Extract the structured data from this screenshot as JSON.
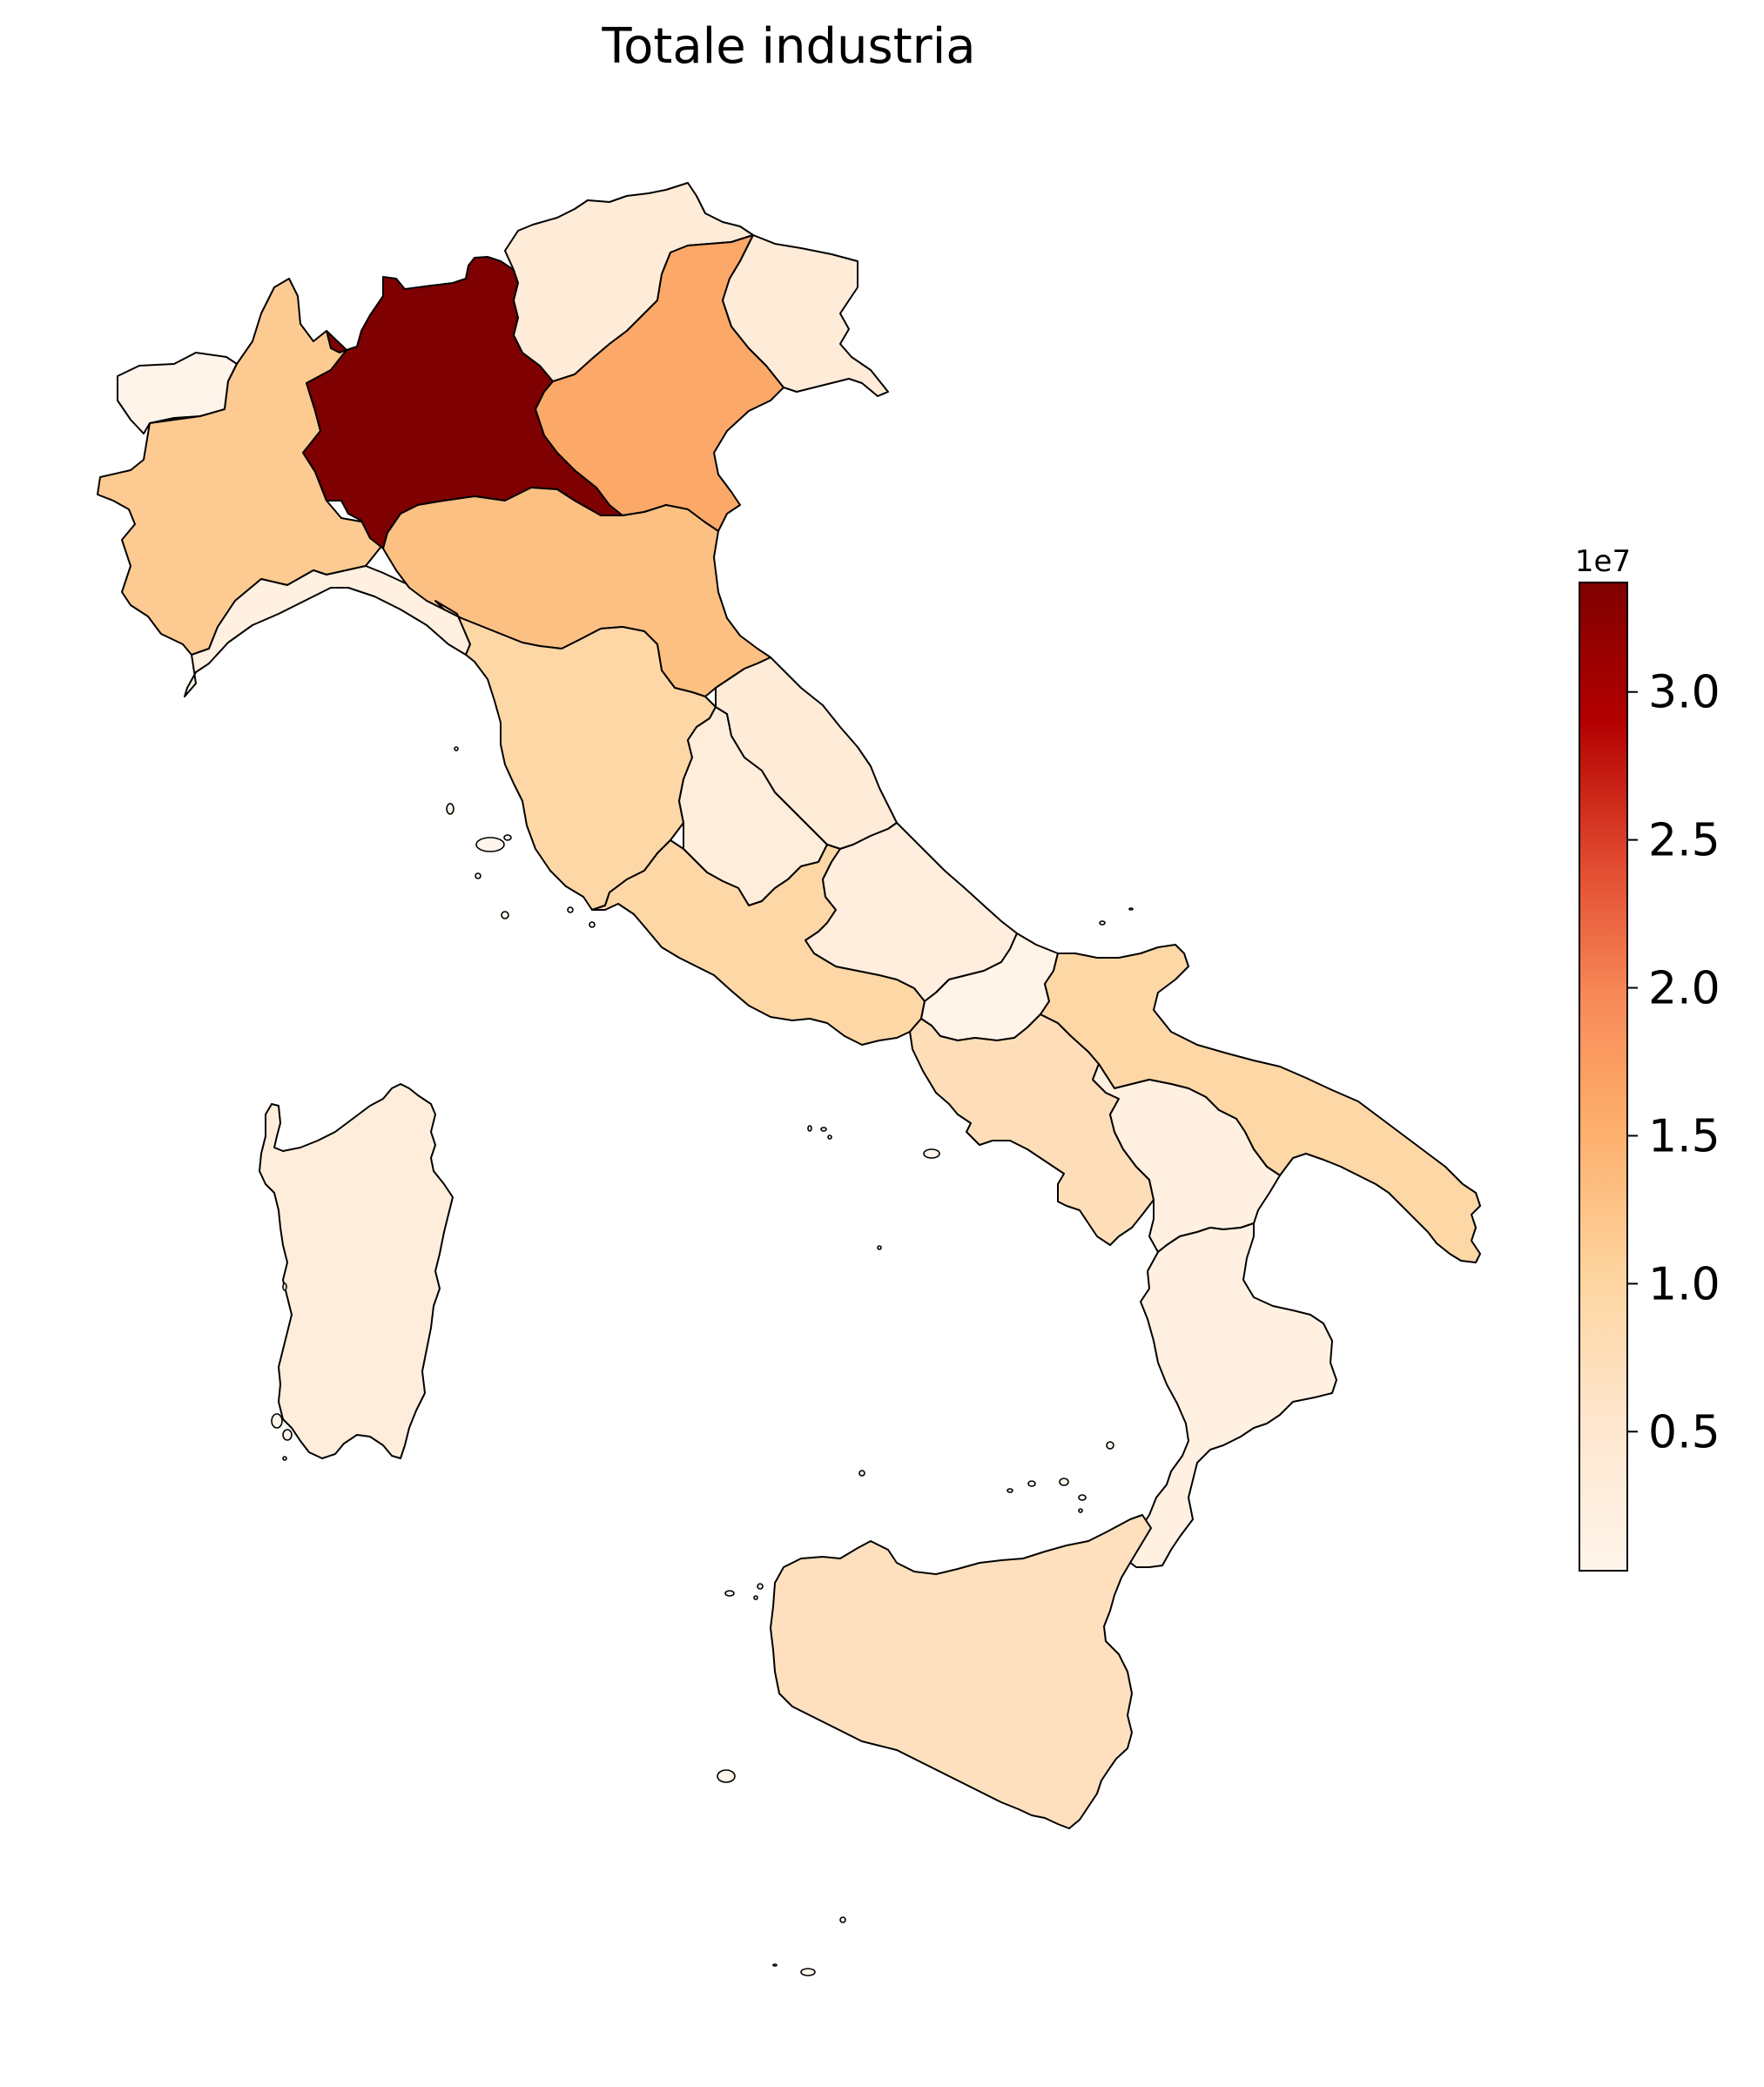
{
  "title": "Totale industria",
  "colorbar": {
    "multiplier_label": "1e7",
    "tick_labels": [
      "0.5",
      "1.0",
      "1.5",
      "2.0",
      "2.5",
      "3.0"
    ],
    "tick_values": [
      0.5,
      1.0,
      1.5,
      2.0,
      2.5,
      3.0
    ],
    "min": 0.03,
    "max": 3.37,
    "colormap": "OrRd",
    "stops": [
      "#fff7ec",
      "#fee8c8",
      "#fdd49e",
      "#fdbb84",
      "#fc8d59",
      "#ef6548",
      "#d7301f",
      "#b30000",
      "#7f0000"
    ]
  },
  "regions": [
    {
      "name": "Valle d'Aosta",
      "value_1e7": 0.05
    },
    {
      "name": "Piemonte",
      "value_1e7": 1.15
    },
    {
      "name": "Liguria",
      "value_1e7": 0.2
    },
    {
      "name": "Lombardia",
      "value_1e7": 3.37
    },
    {
      "name": "Trentino-Alto Adige",
      "value_1e7": 0.35
    },
    {
      "name": "Veneto",
      "value_1e7": 1.6
    },
    {
      "name": "Friuli-Venezia Giulia",
      "value_1e7": 0.35
    },
    {
      "name": "Emilia-Romagna",
      "value_1e7": 1.3
    },
    {
      "name": "Toscana",
      "value_1e7": 0.95
    },
    {
      "name": "Umbria",
      "value_1e7": 0.3
    },
    {
      "name": "Marche",
      "value_1e7": 0.35
    },
    {
      "name": "Lazio",
      "value_1e7": 0.95
    },
    {
      "name": "Abruzzo",
      "value_1e7": 0.25
    },
    {
      "name": "Molise",
      "value_1e7": 0.08
    },
    {
      "name": "Campania",
      "value_1e7": 0.75
    },
    {
      "name": "Puglia",
      "value_1e7": 0.95
    },
    {
      "name": "Basilicata",
      "value_1e7": 0.2
    },
    {
      "name": "Calabria",
      "value_1e7": 0.2
    },
    {
      "name": "Sicilia",
      "value_1e7": 0.7
    },
    {
      "name": "Sardegna",
      "value_1e7": 0.3
    }
  ]
}
